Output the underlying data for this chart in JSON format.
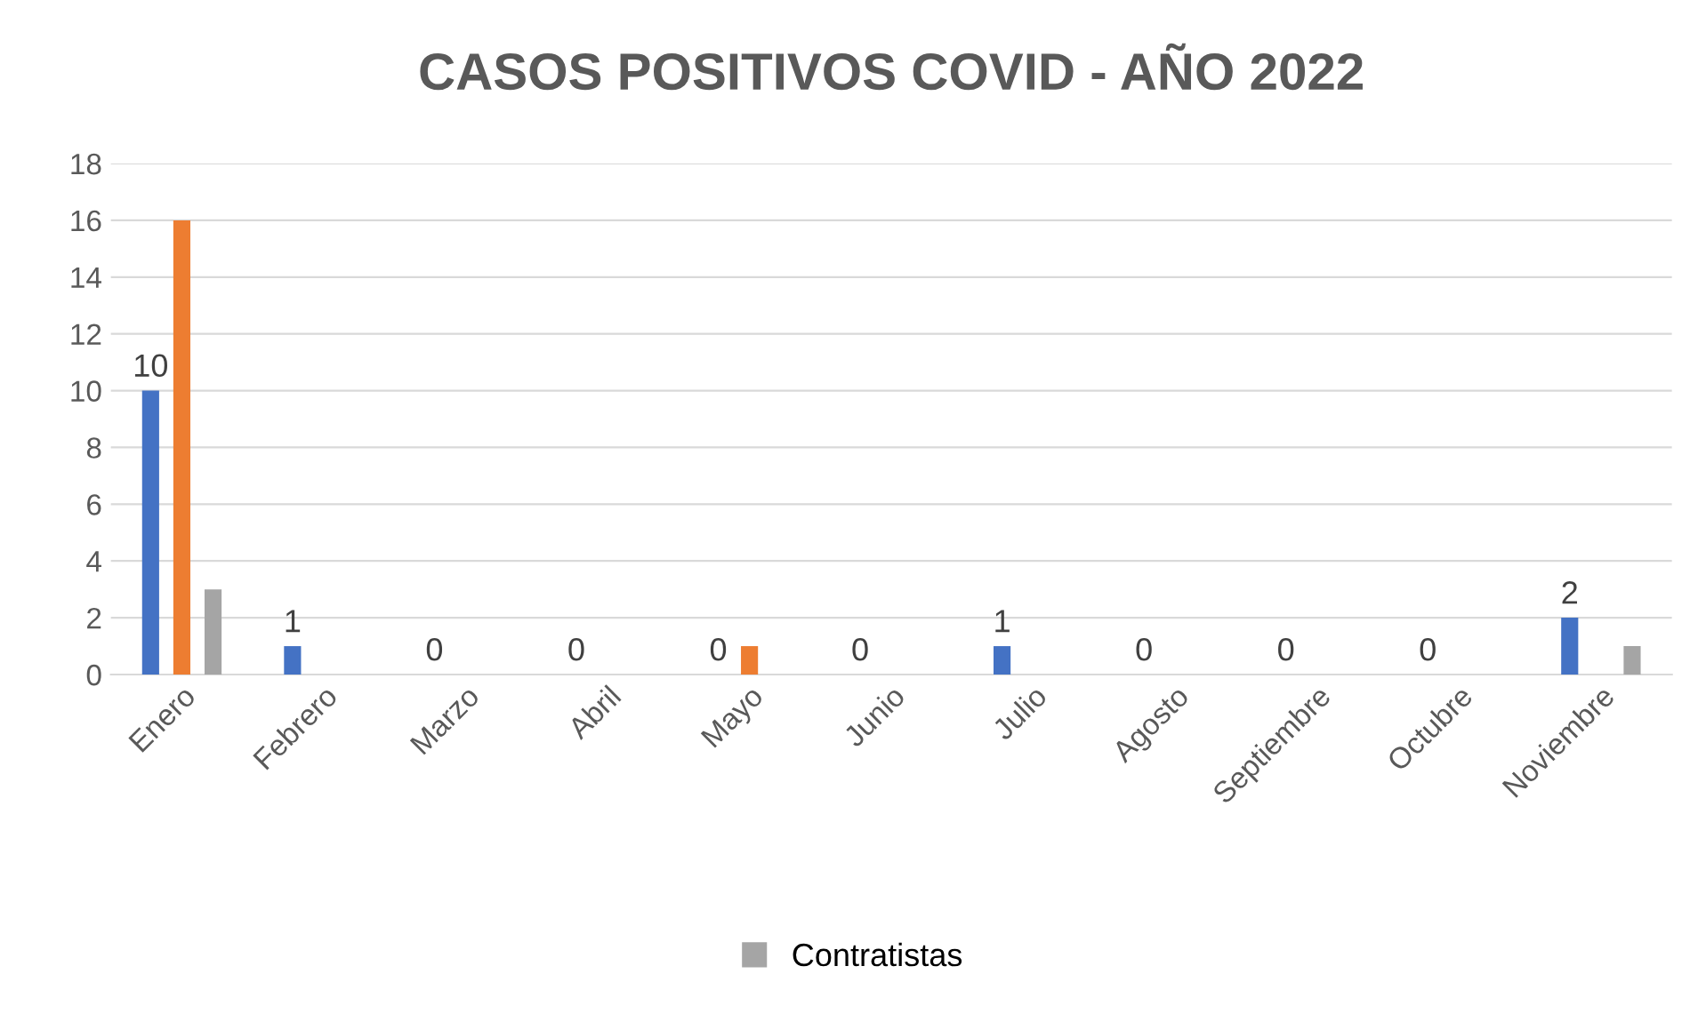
{
  "chart_data": {
    "type": "bar",
    "title": "CASOS POSITIVOS COVID - AÑO 2022",
    "categories": [
      "Enero",
      "Febrero",
      "Marzo",
      "Abril",
      "Mayo",
      "Junio",
      "Julio",
      "Agosto",
      "Septiembre",
      "Octubre",
      "Noviembre"
    ],
    "series": [
      {
        "color": "#4472c4",
        "values": [
          10,
          1,
          0,
          0,
          0,
          0,
          1,
          0,
          0,
          0,
          2
        ],
        "value_labels": [
          "10",
          "1",
          "0",
          "0",
          "0",
          "0",
          "1",
          "0",
          "0",
          "0",
          "2"
        ]
      },
      {
        "color": "#ed7d31",
        "values": [
          16,
          0,
          0,
          0,
          1,
          0,
          0,
          0,
          0,
          0,
          0
        ]
      },
      {
        "name": "Contratistas",
        "color": "#a5a5a5",
        "values": [
          3,
          0,
          0,
          0,
          0,
          0,
          0,
          0,
          0,
          0,
          1
        ]
      }
    ],
    "ylim": [
      0,
      18
    ],
    "yticks": [
      0,
      2,
      4,
      6,
      8,
      10,
      12,
      14,
      16,
      18
    ],
    "grid": "y",
    "legend": "bottom"
  }
}
